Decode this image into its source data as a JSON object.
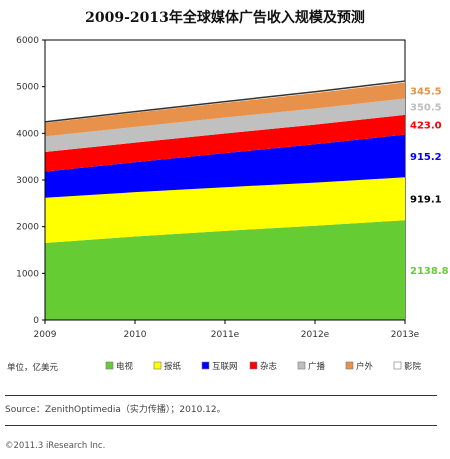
{
  "chart_data": {
    "type": "area",
    "stacked": true,
    "title": "2009-2013年全球媒体广告收入规模及预测",
    "categories": [
      "2009",
      "2010",
      "2011e",
      "2012e",
      "2013e"
    ],
    "y_ticks": [
      "0",
      "1000",
      "2000",
      "3000",
      "4000",
      "5000",
      "6000"
    ],
    "ylim": [
      0,
      6000
    ],
    "unit_label": "单位，亿美元",
    "legend_position": "bottom",
    "grid": false,
    "series": [
      {
        "name": "电视",
        "color": "#66cc33",
        "values": [
          1650,
          1790,
          1910,
          2020,
          2138.8
        ],
        "end_label": "2138.8",
        "label_color": "#66cc33"
      },
      {
        "name": "报纸",
        "color": "#ffff00",
        "values": [
          970,
          950,
          935,
          925,
          919.1
        ],
        "end_label": "919.1",
        "label_color": "#000000"
      },
      {
        "name": "互联网",
        "color": "#0000ff",
        "values": [
          560,
          640,
          730,
          820,
          915.2
        ],
        "end_label": "915.2",
        "label_color": "#0000ff"
      },
      {
        "name": "杂志",
        "color": "#ff0000",
        "values": [
          420,
          421,
          421,
          422,
          423.0
        ],
        "end_label": "423.0",
        "label_color": "#ff0000"
      },
      {
        "name": "广播",
        "color": "#c0c0c0",
        "values": [
          335,
          338,
          342,
          346,
          350.5
        ],
        "end_label": "350.5",
        "label_color": "#bfbfbf"
      },
      {
        "name": "户外",
        "color": "#e8914a",
        "values": [
          290,
          305,
          318,
          332,
          345.5
        ],
        "end_label": "345.5",
        "label_color": "#e8914a"
      },
      {
        "name": "影院",
        "color": "#ffffff",
        "values": [
          20,
          22,
          24,
          26,
          28
        ],
        "end_label": "",
        "label_color": "#000000"
      }
    ]
  },
  "footer": {
    "source": "Source：ZenithOptimedia（实力传播）；2010.12。",
    "copyright": "©2011.3 iResearch Inc."
  }
}
